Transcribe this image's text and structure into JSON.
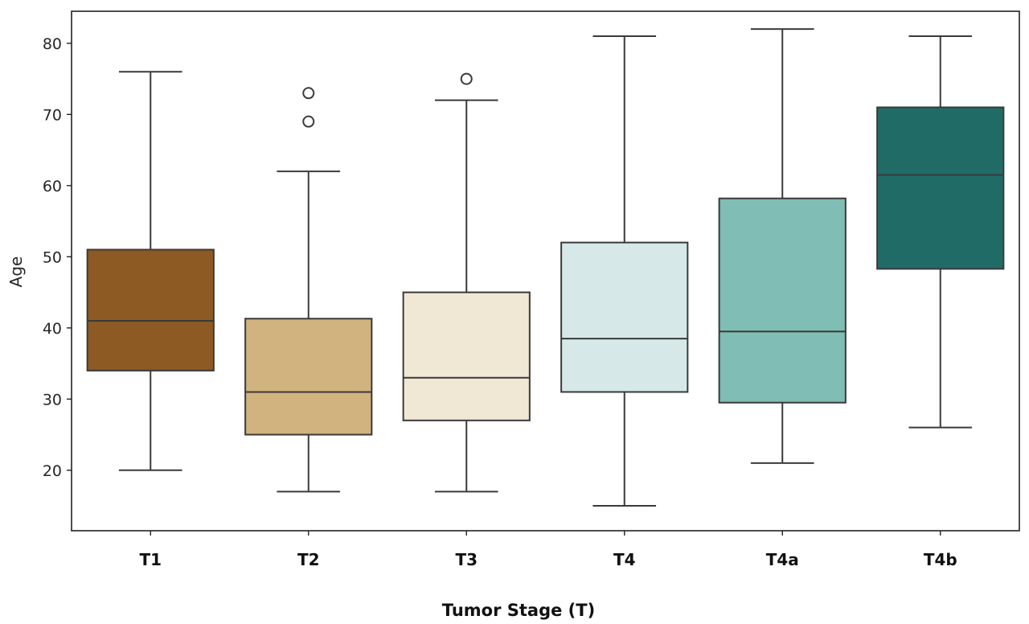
{
  "chart_data": {
    "type": "box",
    "title": "",
    "xlabel": "Tumor Stage (T)",
    "ylabel": "Age",
    "ylim": [
      11.5,
      84.5
    ],
    "yticks": [
      20,
      30,
      40,
      50,
      60,
      70,
      80
    ],
    "grid": false,
    "legend": "none",
    "categories": [
      "T1",
      "T2",
      "T3",
      "T4",
      "T4a",
      "T4b"
    ],
    "boxes": [
      {
        "category": "T1",
        "whisker_low": 20,
        "q1": 34,
        "median": 41,
        "q3": 51,
        "whisker_high": 76,
        "outliers": [],
        "color": "#8c5a22"
      },
      {
        "category": "T2",
        "whisker_low": 17,
        "q1": 25,
        "median": 31,
        "q3": 41.3,
        "whisker_high": 62,
        "outliers": [
          69,
          73
        ],
        "color": "#d0b37f"
      },
      {
        "category": "T3",
        "whisker_low": 17,
        "q1": 27,
        "median": 33,
        "q3": 45,
        "whisker_high": 72,
        "outliers": [
          75
        ],
        "color": "#f1e7d5"
      },
      {
        "category": "T4",
        "whisker_low": 15,
        "q1": 31,
        "median": 38.5,
        "q3": 52,
        "whisker_high": 81,
        "outliers": [],
        "color": "#d6e9e8"
      },
      {
        "category": "T4a",
        "whisker_low": 21,
        "q1": 29.5,
        "median": 39.5,
        "q3": 58.2,
        "whisker_high": 82,
        "outliers": [],
        "color": "#80bdb4"
      },
      {
        "category": "T4b",
        "whisker_low": 26,
        "q1": 48.3,
        "median": 61.5,
        "q3": 71,
        "whisker_high": 81,
        "outliers": [],
        "color": "#216b67"
      }
    ]
  }
}
